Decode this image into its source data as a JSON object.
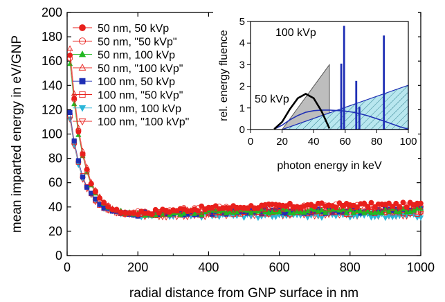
{
  "chart_data": [
    {
      "id": "main",
      "type": "scatter",
      "xlabel": "radial distance from GNP surface in nm",
      "ylabel": "mean imparted energy in eV/GNP",
      "xlim": [
        0,
        1000
      ],
      "ylim": [
        0,
        200
      ],
      "xticks": [
        0,
        200,
        400,
        600,
        800,
        1000
      ],
      "yticks": [
        0,
        20,
        40,
        60,
        80,
        100,
        120,
        140,
        160,
        180,
        200
      ],
      "grid": false,
      "legend_position": "top-left",
      "series": [
        {
          "name": "50 nm,   50 kVp",
          "marker": "circle",
          "filled": true,
          "color": "#e8201c",
          "y0": 164,
          "plateau": 42
        },
        {
          "name": "50 nm,   \"50 kVp\"",
          "marker": "circle",
          "filled": false,
          "color": "#e8201c",
          "y0": 163,
          "plateau": 41
        },
        {
          "name": "50 nm, 100 kVp",
          "marker": "triangle-up",
          "filled": true,
          "color": "#22b822",
          "y0": 158,
          "plateau": 37
        },
        {
          "name": "50 nm, \"100 kVp\"",
          "marker": "triangle-up",
          "filled": false,
          "color": "#e8201c",
          "y0": 170,
          "plateau": 38
        },
        {
          "name": "100 nm,   50 kVp",
          "marker": "square",
          "filled": true,
          "color": "#1f2fb5",
          "y0": 117,
          "plateau": 37
        },
        {
          "name": "100 nm,   \"50 kVp\"",
          "marker": "square",
          "filled": false,
          "color": "#e8201c",
          "y0": 116,
          "plateau": 36
        },
        {
          "name": "100 nm, 100 kVp",
          "marker": "triangle-down",
          "filled": true,
          "color": "#2bb6d9",
          "y0": 113,
          "plateau": 33
        },
        {
          "name": "100 nm, \"100 kVp\"",
          "marker": "triangle-down",
          "filled": false,
          "color": "#e8201c",
          "y0": 112,
          "plateau": 34
        }
      ]
    },
    {
      "id": "inset",
      "type": "area",
      "xlabel": "photon energy in keV",
      "ylabel": "rel. energy fluence",
      "xlim": [
        0,
        100
      ],
      "ylim": [
        0,
        5
      ],
      "xticks": [
        0,
        20,
        40,
        60,
        80,
        100
      ],
      "yticks": [
        0,
        1,
        2,
        3,
        4,
        5
      ],
      "annotations": [
        {
          "text": "50 kVp",
          "color": "#000000"
        },
        {
          "text": "100 kVp",
          "color": "#1f2fb5"
        }
      ],
      "series": [
        {
          "label": "50 kVp",
          "color": "#000000",
          "x": [
            15,
            20,
            25,
            30,
            35,
            40,
            45,
            50
          ],
          "y": [
            0.02,
            0.35,
            0.95,
            1.45,
            1.65,
            1.45,
            0.85,
            0.05
          ]
        },
        {
          "label": "\"50 kVp\"",
          "color": "#888888",
          "fill": "#bdbdbd",
          "x": [
            20,
            50
          ],
          "y": [
            0,
            3.0
          ]
        },
        {
          "label": "100 kVp",
          "color": "#1f2fb5",
          "x": [
            15,
            20,
            25,
            30,
            35,
            40,
            45,
            50,
            55,
            60,
            65,
            70,
            75,
            80,
            85,
            90,
            95,
            100
          ],
          "y": [
            0.02,
            0.2,
            0.45,
            0.65,
            0.8,
            0.87,
            0.9,
            0.9,
            0.88,
            0.85,
            0.8,
            0.72,
            0.62,
            0.5,
            0.38,
            0.25,
            0.12,
            0.02
          ],
          "lines": [
            {
              "x": 57.5,
              "y": 3.05
            },
            {
              "x": 59.3,
              "y": 4.8
            },
            {
              "x": 67,
              "y": 2.25
            },
            {
              "x": 69,
              "y": 1.05
            },
            {
              "x": 84.5,
              "y": 4.35
            }
          ]
        },
        {
          "label": "\"100 kVp\"",
          "color": "#1f2fb5",
          "fill": "#b9e7ef",
          "hatch": true,
          "x": [
            20,
            100
          ],
          "y": [
            0,
            2.05
          ]
        }
      ]
    }
  ]
}
